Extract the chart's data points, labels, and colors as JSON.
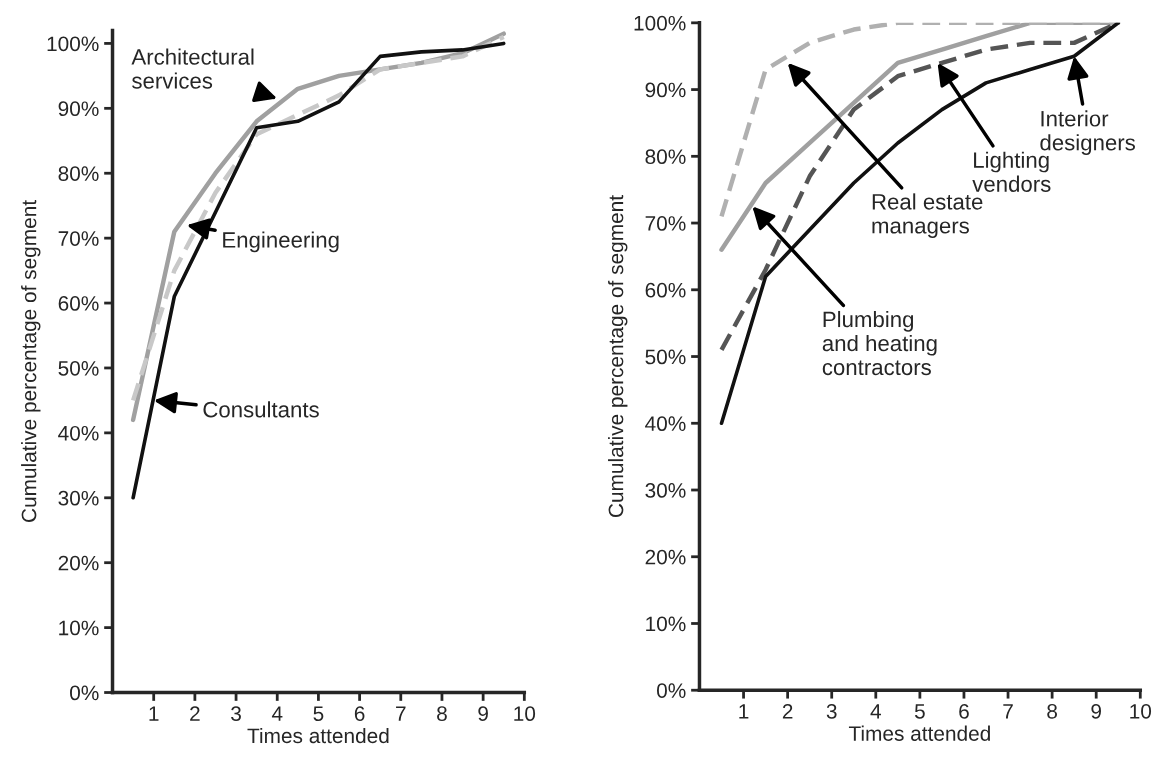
{
  "chart_data": [
    {
      "type": "line",
      "xlabel": "Times attended",
      "ylabel": "Cumulative percentage of segment",
      "x": [
        0.5,
        1.5,
        2.5,
        3.5,
        4.5,
        5.5,
        6.5,
        7.5,
        8.5,
        9.5
      ],
      "series": [
        {
          "color": "#a0a0a0",
          "line_style": "solid",
          "values": [
            42,
            71,
            80,
            88,
            93,
            95,
            96,
            97,
            98.5,
            101.5
          ]
        },
        {
          "color": "#c8c8c8",
          "line_style": "dashed",
          "values": [
            45,
            65,
            77,
            86,
            89,
            92,
            96,
            97,
            98,
            101
          ]
        },
        {
          "color": "#111111",
          "line_style": "solid",
          "values": [
            30,
            61,
            74,
            87,
            88,
            91,
            98,
            98.7,
            99,
            100
          ]
        }
      ],
      "xlim": [
        0,
        10
      ],
      "xticks": [
        1,
        2,
        3,
        4,
        5,
        6,
        7,
        8,
        9,
        10
      ],
      "ylim": [
        0,
        102
      ],
      "yticks": [
        {
          "value": 0,
          "label": "0%"
        },
        {
          "value": 10,
          "label": "10%"
        },
        {
          "value": 20,
          "label": "20%"
        },
        {
          "value": 30,
          "label": "30%"
        },
        {
          "value": 40,
          "label": "40%"
        },
        {
          "value": 50,
          "label": "50%"
        },
        {
          "value": 60,
          "label": "60%"
        },
        {
          "value": 70,
          "label": "70%"
        },
        {
          "value": 80,
          "label": "80%"
        },
        {
          "value": 90,
          "label": "90%"
        },
        {
          "value": 100,
          "label": "100%"
        }
      ],
      "grid": false,
      "legend": false,
      "annotations": [
        {
          "text": "Architectural\nservices",
          "x": 4.0,
          "y": 91.5
        },
        {
          "text": "Engineering",
          "x": 1.8,
          "y": 72
        },
        {
          "text": "Consultants",
          "x": 1.0,
          "y": 45
        }
      ]
    },
    {
      "type": "line",
      "xlabel": "Times attended",
      "ylabel": "Cumulative percentage of segment",
      "x": [
        0.5,
        1.5,
        2.5,
        3.5,
        4.5,
        5.5,
        6.5,
        7.5,
        8.5,
        9.5
      ],
      "series": [
        {
          "color": "#a0a0a0",
          "line_style": "solid",
          "values": [
            66,
            76,
            82,
            88,
            94,
            96,
            98,
            100,
            100,
            100
          ]
        },
        {
          "color": "#b0b0b0",
          "line_style": "dashed",
          "values": [
            71,
            93,
            97,
            99,
            100,
            100,
            100,
            100,
            100,
            100
          ]
        },
        {
          "color": "#555555",
          "line_style": "dashed",
          "values": [
            51,
            63,
            77,
            87,
            92,
            94,
            96,
            97,
            97,
            100
          ]
        },
        {
          "color": "#111111",
          "line_style": "solid",
          "values": [
            40,
            62,
            69,
            76,
            82,
            87,
            91,
            93,
            95,
            100
          ]
        }
      ],
      "xlim": [
        0,
        10
      ],
      "xticks": [
        1,
        2,
        3,
        4,
        5,
        6,
        7,
        8,
        9,
        10
      ],
      "ylim": [
        0,
        100
      ],
      "yticks": [
        {
          "value": 0,
          "label": "0%"
        },
        {
          "value": 10,
          "label": "10%"
        },
        {
          "value": 20,
          "label": "20%"
        },
        {
          "value": 30,
          "label": "30%"
        },
        {
          "value": 40,
          "label": "40%"
        },
        {
          "value": 50,
          "label": "50%"
        },
        {
          "value": 60,
          "label": "60%"
        },
        {
          "value": 70,
          "label": "70%"
        },
        {
          "value": 80,
          "label": "80%"
        },
        {
          "value": 90,
          "label": "90%"
        },
        {
          "value": 100,
          "label": "100%"
        }
      ],
      "grid": false,
      "legend": false,
      "annotations": [
        {
          "text": "Real estate\nmanagers",
          "x": 2.0,
          "y": 94
        },
        {
          "text": "Lighting\nvendors",
          "x": 5.4,
          "y": 94
        },
        {
          "text": "Interior\ndesigners",
          "x": 8.5,
          "y": 95
        },
        {
          "text": "Plumbing\nand heating\ncontractors",
          "x": 1.2,
          "y": 72.5
        }
      ]
    }
  ]
}
